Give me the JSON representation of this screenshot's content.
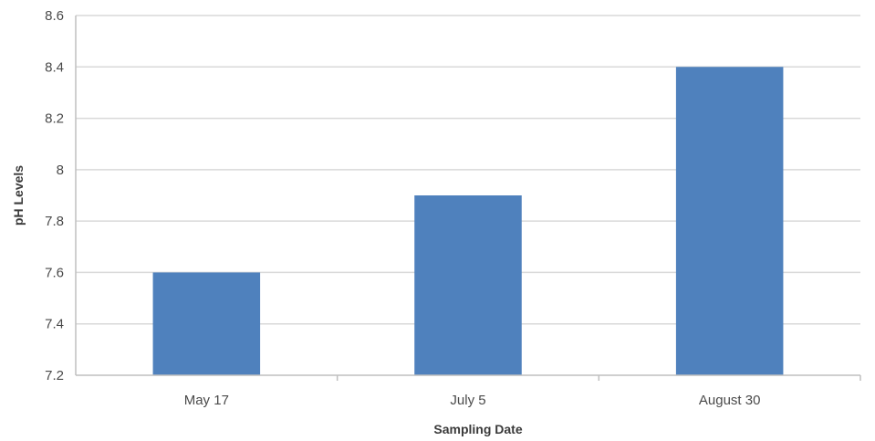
{
  "chart_data": {
    "type": "bar",
    "title": "",
    "xlabel": "Sampling Date",
    "ylabel": "pH Levels",
    "categories": [
      "May 17",
      "July 5",
      "August 30"
    ],
    "values": [
      7.6,
      7.9,
      8.4
    ],
    "ylim": [
      7.2,
      8.6
    ],
    "yticks": [
      "7.2",
      "7.4",
      "7.6",
      "7.8",
      "8",
      "8.2",
      "8.4",
      "8.6"
    ],
    "grid": true,
    "legend": "none",
    "colors": {
      "bar": "#4f81bd",
      "grid": "#d9d9d9",
      "axis": "#bfbfbf"
    }
  }
}
